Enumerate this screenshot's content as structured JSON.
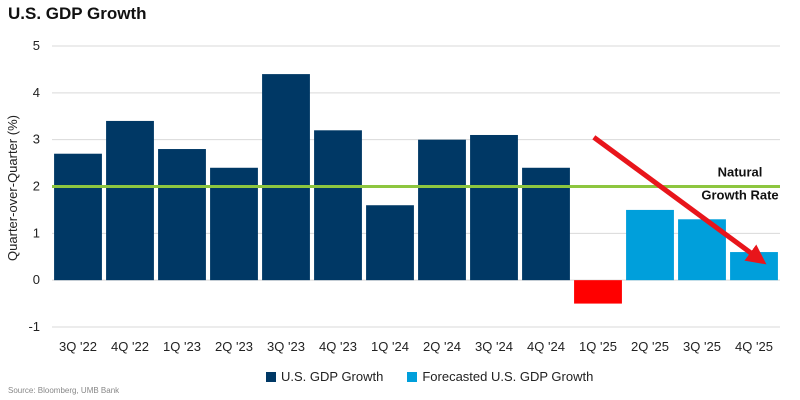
{
  "chart_data": {
    "type": "bar",
    "title": "U.S. GDP Growth",
    "ylabel": "Quarter-over-Quarter (%)",
    "xlabel": "",
    "ylim": [
      -1,
      5
    ],
    "yticks": [
      -1,
      0,
      1,
      2,
      3,
      4,
      5
    ],
    "categories": [
      "3Q '22",
      "4Q '22",
      "1Q '23",
      "2Q '23",
      "3Q '23",
      "4Q '23",
      "1Q '24",
      "2Q '24",
      "3Q '24",
      "4Q '24",
      "1Q '25",
      "2Q '25",
      "3Q '25",
      "4Q '25"
    ],
    "series": [
      {
        "name": "U.S. GDP Growth",
        "color": "#003865",
        "values": [
          2.7,
          3.4,
          2.8,
          2.4,
          4.4,
          3.2,
          1.6,
          3.0,
          3.1,
          2.4,
          -0.5,
          null,
          null,
          null
        ]
      },
      {
        "name": "Forecasted U.S. GDP Growth",
        "color": "#009FDB",
        "values": [
          null,
          null,
          null,
          null,
          null,
          null,
          null,
          null,
          null,
          null,
          null,
          1.5,
          1.3,
          0.6
        ]
      }
    ],
    "negative_bar_color": "#FF0000",
    "reference_line": {
      "value": 2.0,
      "color": "#8DC63F",
      "label_line1": "Natural",
      "label_line2": "Growth Rate"
    },
    "trend_arrow": {
      "from": {
        "category": "1Q '25",
        "value": 3.05
      },
      "to": {
        "category": "4Q '25",
        "value": 0.45
      },
      "color": "#E8151B"
    },
    "legend_position": "bottom-center"
  },
  "source_text": "Source: Bloomberg, UMB Bank"
}
